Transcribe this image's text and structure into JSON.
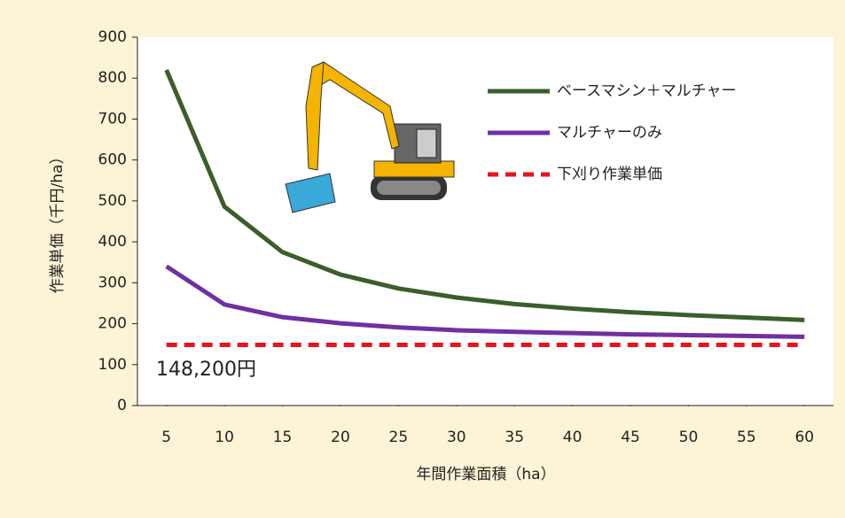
{
  "chart_data": {
    "type": "line",
    "x_label": "年間作業面積（ha）",
    "y_label": "作業単価（千円/ha）",
    "x": [
      5,
      10,
      15,
      20,
      25,
      30,
      35,
      40,
      45,
      50,
      55,
      60
    ],
    "xlim": [
      2.5,
      62.5
    ],
    "xticks": [
      5,
      10,
      15,
      20,
      25,
      30,
      35,
      40,
      45,
      50,
      55,
      60
    ],
    "ylim": [
      0,
      900
    ],
    "yticks": [
      0,
      100,
      200,
      300,
      400,
      500,
      600,
      700,
      800,
      900
    ],
    "series": [
      {
        "name": "ベースマシン＋マルチャー",
        "color": "#3b5e2b",
        "dashed": false,
        "values": [
          820,
          486,
          375,
          320,
          286,
          264,
          248,
          237,
          228,
          221,
          215,
          209
        ]
      },
      {
        "name": "マルチャーのみ",
        "color": "#7030a0",
        "dashed": false,
        "values": [
          340,
          247,
          216,
          201,
          191,
          184,
          180,
          177,
          174,
          172,
          170,
          168
        ]
      },
      {
        "name": "下刈り作業単価",
        "color": "#e8141b",
        "dashed": true,
        "values": [
          148.2,
          148.2,
          148.2,
          148.2,
          148.2,
          148.2,
          148.2,
          148.2,
          148.2,
          148.2,
          148.2,
          148.2
        ]
      }
    ],
    "annotation": "148,200円"
  }
}
